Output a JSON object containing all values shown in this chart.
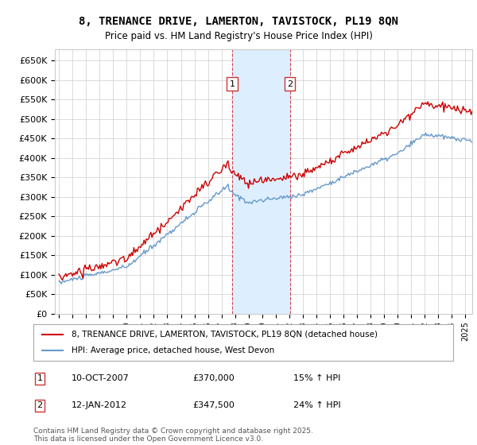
{
  "title": "8, TRENANCE DRIVE, LAMERTON, TAVISTOCK, PL19 8QN",
  "subtitle": "Price paid vs. HM Land Registry's House Price Index (HPI)",
  "legend_label_red": "8, TRENANCE DRIVE, LAMERTON, TAVISTOCK, PL19 8QN (detached house)",
  "legend_label_blue": "HPI: Average price, detached house, West Devon",
  "transaction1_date": "10-OCT-2007",
  "transaction1_price": 370000,
  "transaction1_hpi": "15% ↑ HPI",
  "transaction2_date": "12-JAN-2012",
  "transaction2_price": 347500,
  "transaction2_hpi": "24% ↑ HPI",
  "footer": "Contains HM Land Registry data © Crown copyright and database right 2025.\nThis data is licensed under the Open Government Licence v3.0.",
  "ylim": [
    0,
    680000
  ],
  "yticks": [
    0,
    50000,
    100000,
    150000,
    200000,
    250000,
    300000,
    350000,
    400000,
    450000,
    500000,
    550000,
    600000,
    650000
  ],
  "xstart_year": 1995,
  "xend_year": 2025,
  "red_color": "#cc0000",
  "blue_color": "#6699cc",
  "shade_color": "#ddeeff",
  "grid_color": "#cccccc",
  "bg_color": "#ffffff"
}
